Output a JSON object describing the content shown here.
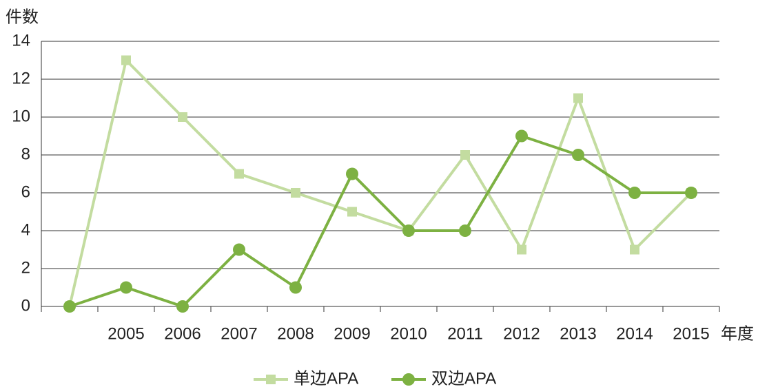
{
  "chart_data": {
    "type": "line",
    "y_label": "件数",
    "x_label": "年度",
    "categories": [
      null,
      "2005",
      "2006",
      "2007",
      "2008",
      "2009",
      "2010",
      "2011",
      "2012",
      "2013",
      "2014",
      "2015"
    ],
    "series": [
      {
        "name": "单边APA",
        "color": "#c3dca0",
        "marker": "square",
        "values": [
          0,
          13,
          10,
          7,
          6,
          5,
          4,
          8,
          3,
          11,
          3,
          6
        ]
      },
      {
        "name": "双边APA",
        "color": "#7db142",
        "marker": "circle",
        "values": [
          0,
          1,
          0,
          3,
          1,
          7,
          4,
          4,
          9,
          8,
          6,
          6
        ]
      }
    ],
    "ylim": [
      0,
      14
    ],
    "yticks": [
      0,
      2,
      4,
      6,
      8,
      10,
      12,
      14
    ],
    "grid": true,
    "legend": "bottom"
  }
}
